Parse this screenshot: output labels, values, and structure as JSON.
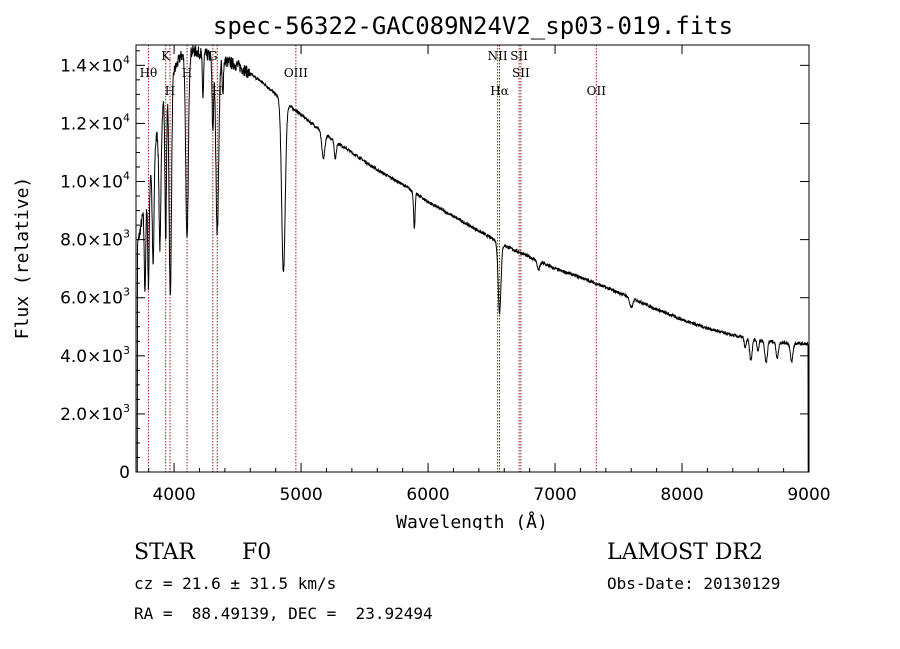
{
  "chart_data": {
    "type": "line",
    "title": "spec-56322-GAC089N24V2_sp03-019.fits",
    "xlabel": "Wavelength (Å)",
    "ylabel": "Flux (relative)",
    "xlim": [
      3700,
      9000
    ],
    "ylim": [
      0,
      14700
    ],
    "x_ticks": [
      "4000",
      "5000",
      "6000",
      "7000",
      "8000",
      "9000"
    ],
    "y_ticks": [
      {
        "mant": "0",
        "exp": ""
      },
      {
        "mant": "2.0×10",
        "exp": "3"
      },
      {
        "mant": "4.0×10",
        "exp": "3"
      },
      {
        "mant": "6.0×10",
        "exp": "3"
      },
      {
        "mant": "8.0×10",
        "exp": "3"
      },
      {
        "mant": "1.0×10",
        "exp": "4"
      },
      {
        "mant": "1.2×10",
        "exp": "4"
      },
      {
        "mant": "1.4×10",
        "exp": "4"
      }
    ],
    "y_tick_values": [
      0,
      2000,
      4000,
      6000,
      8000,
      10000,
      12000,
      14000
    ],
    "x_tick_values": [
      4000,
      5000,
      6000,
      7000,
      8000,
      9000
    ],
    "continuum": [
      [
        3700,
        7500
      ],
      [
        3760,
        9000
      ],
      [
        3820,
        10500
      ],
      [
        3900,
        12500
      ],
      [
        3960,
        13400
      ],
      [
        4050,
        14300
      ],
      [
        4150,
        14500
      ],
      [
        4300,
        14300
      ],
      [
        4500,
        14000
      ],
      [
        4700,
        13400
      ],
      [
        4850,
        12800
      ],
      [
        5000,
        12300
      ],
      [
        5200,
        11600
      ],
      [
        5400,
        11000
      ],
      [
        5600,
        10400
      ],
      [
        5800,
        9900
      ],
      [
        6000,
        9300
      ],
      [
        6200,
        8800
      ],
      [
        6400,
        8300
      ],
      [
        6600,
        7800
      ],
      [
        6800,
        7400
      ],
      [
        7000,
        7000
      ],
      [
        7200,
        6700
      ],
      [
        7400,
        6350
      ],
      [
        7600,
        6000
      ],
      [
        7800,
        5600
      ],
      [
        8000,
        5250
      ],
      [
        8200,
        4950
      ],
      [
        8400,
        4700
      ],
      [
        8600,
        4550
      ],
      [
        8800,
        4450
      ],
      [
        9000,
        4400
      ]
    ],
    "absorption": [
      {
        "center": 3771,
        "depth": 3000,
        "width": 6
      },
      {
        "center": 3798,
        "depth": 3500,
        "width": 6
      },
      {
        "center": 3835,
        "depth": 3800,
        "width": 7
      },
      {
        "center": 3889,
        "depth": 4500,
        "width": 8
      },
      {
        "center": 3934,
        "depth": 5000,
        "width": 6
      },
      {
        "center": 3970,
        "depth": 7500,
        "width": 9
      },
      {
        "center": 4102,
        "depth": 6500,
        "width": 10
      },
      {
        "center": 4227,
        "depth": 1500,
        "width": 5
      },
      {
        "center": 4305,
        "depth": 2500,
        "width": 6
      },
      {
        "center": 4340,
        "depth": 6000,
        "width": 11
      },
      {
        "center": 4383,
        "depth": 1200,
        "width": 5
      },
      {
        "center": 4861,
        "depth": 5900,
        "width": 14
      },
      {
        "center": 5175,
        "depth": 900,
        "width": 12
      },
      {
        "center": 5270,
        "depth": 600,
        "width": 8
      },
      {
        "center": 5892,
        "depth": 1200,
        "width": 6
      },
      {
        "center": 6563,
        "depth": 2400,
        "width": 11
      },
      {
        "center": 6870,
        "depth": 300,
        "width": 10
      },
      {
        "center": 7600,
        "depth": 350,
        "width": 12
      },
      {
        "center": 8498,
        "depth": 350,
        "width": 8
      },
      {
        "center": 8542,
        "depth": 750,
        "width": 10
      },
      {
        "center": 8598,
        "depth": 350,
        "width": 8
      },
      {
        "center": 8662,
        "depth": 750,
        "width": 10
      },
      {
        "center": 8750,
        "depth": 550,
        "width": 9
      },
      {
        "center": 8863,
        "depth": 650,
        "width": 10
      }
    ],
    "lines": [
      {
        "label": "Hθ",
        "x": 3798,
        "row": 1
      },
      {
        "label": "K",
        "x": 3934,
        "row": 0
      },
      {
        "label": "H",
        "x": 3968,
        "row": 2
      },
      {
        "label": "H",
        "x": 4102,
        "row": 1
      },
      {
        "label": "G",
        "x": 4305,
        "row": 0
      },
      {
        "label": "H",
        "x": 4340,
        "row": 2
      },
      {
        "label": "OIII",
        "x": 4959,
        "row": 1
      },
      {
        "label": "NII",
        "x": 6548,
        "row": 0
      },
      {
        "label": "SII",
        "x": 6717,
        "row": 0
      },
      {
        "label": "Hα",
        "x": 6563,
        "row": 2
      },
      {
        "label": "SII",
        "x": 6731,
        "row": 1
      },
      {
        "label": "OII",
        "x": 7325,
        "row": 2
      }
    ]
  },
  "info": {
    "class_label": "STAR",
    "subclass": "F0",
    "survey": "LAMOST DR2",
    "cz": "cz = 21.6 ± 31.5 km/s",
    "obs_date": "Obs-Date: 20130129",
    "radec": "RA =  88.49139, DEC =  23.92494"
  },
  "colors": {
    "line_marker": "#9b1b1b",
    "spectrum": "#000000"
  }
}
